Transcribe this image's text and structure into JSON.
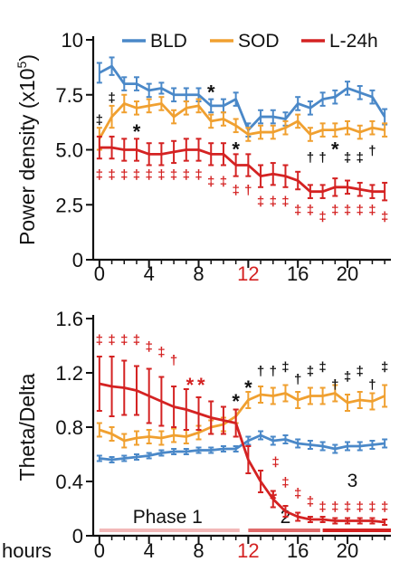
{
  "chart_data": [
    {
      "type": "line",
      "ylabel": "Power density (x10",
      "ylabel_sup": "5",
      "ylabel_close": ")",
      "ylim": [
        0,
        10
      ],
      "yticks": [
        "0",
        "2.5",
        "5.0",
        "7.5",
        "10"
      ],
      "xlim": [
        -0.5,
        23.5
      ],
      "xticks": [
        {
          "x": 0,
          "label": "0",
          "color": "#111111"
        },
        {
          "x": 4,
          "label": "4",
          "color": "#111111"
        },
        {
          "x": 8,
          "label": "8",
          "color": "#111111"
        },
        {
          "x": 12,
          "label": "12",
          "color": "#d42222"
        },
        {
          "x": 16,
          "label": "16",
          "color": "#111111"
        },
        {
          "x": 20,
          "label": "20",
          "color": "#111111"
        }
      ],
      "legend": {
        "placement": "top"
      },
      "x": [
        0,
        1,
        2,
        3,
        4,
        5,
        6,
        7,
        8,
        9,
        10,
        11,
        12,
        13,
        14,
        15,
        16,
        17,
        18,
        19,
        20,
        21,
        22,
        23
      ],
      "series": [
        {
          "name": "BLD",
          "color": "#4a88c8",
          "values": [
            8.5,
            8.8,
            8.0,
            8.0,
            7.7,
            7.8,
            7.5,
            7.5,
            7.5,
            7.0,
            7.0,
            7.3,
            5.9,
            6.5,
            6.5,
            6.4,
            7.1,
            6.9,
            7.3,
            7.4,
            7.8,
            7.6,
            7.4,
            6.5
          ],
          "err": [
            0.45,
            0.4,
            0.3,
            0.3,
            0.3,
            0.25,
            0.3,
            0.3,
            0.3,
            0.3,
            0.3,
            0.3,
            0.3,
            0.3,
            0.3,
            0.3,
            0.3,
            0.3,
            0.3,
            0.3,
            0.3,
            0.3,
            0.3,
            0.35
          ]
        },
        {
          "name": "SOD",
          "color": "#f0a030",
          "values": [
            5.5,
            6.5,
            7.1,
            6.9,
            7.0,
            7.1,
            6.5,
            6.9,
            7.0,
            6.3,
            6.4,
            6.1,
            5.7,
            5.8,
            5.8,
            6.0,
            6.3,
            5.7,
            5.9,
            5.9,
            6.0,
            5.8,
            6.0,
            5.9
          ],
          "err": [
            0.5,
            0.5,
            0.4,
            0.3,
            0.3,
            0.3,
            0.3,
            0.3,
            0.3,
            0.3,
            0.3,
            0.3,
            0.3,
            0.3,
            0.3,
            0.3,
            0.3,
            0.3,
            0.3,
            0.3,
            0.3,
            0.3,
            0.3,
            0.3
          ]
        },
        {
          "name": "L-24h",
          "color": "#d42222",
          "values": [
            5.1,
            5.1,
            5.0,
            5.0,
            4.8,
            4.8,
            4.9,
            5.0,
            5.0,
            4.8,
            4.8,
            4.3,
            4.3,
            3.8,
            3.9,
            3.8,
            3.6,
            3.1,
            3.1,
            3.3,
            3.3,
            3.2,
            3.1,
            3.1
          ],
          "err": [
            0.5,
            0.5,
            0.5,
            0.5,
            0.5,
            0.5,
            0.5,
            0.5,
            0.5,
            0.5,
            0.5,
            0.5,
            0.5,
            0.5,
            0.5,
            0.5,
            0.4,
            0.3,
            0.3,
            0.4,
            0.3,
            0.3,
            0.3,
            0.4
          ]
        }
      ],
      "annotations": [
        {
          "text": "‡",
          "x": 0,
          "y": 6.4,
          "color": "#111111"
        },
        {
          "text": "‡",
          "x": 1,
          "y": 7.4,
          "color": "#111111"
        },
        {
          "text": "*",
          "x": 3,
          "y": 6.0,
          "color": "#111111"
        },
        {
          "text": "*",
          "x": 9,
          "y": 7.8,
          "color": "#111111"
        },
        {
          "text": "*",
          "x": 11,
          "y": 5.2,
          "color": "#111111"
        },
        {
          "text": "†",
          "x": 17,
          "y": 4.7,
          "color": "#111111"
        },
        {
          "text": "†",
          "x": 18,
          "y": 4.7,
          "color": "#111111"
        },
        {
          "text": "*",
          "x": 19,
          "y": 5.2,
          "color": "#111111"
        },
        {
          "text": "‡",
          "x": 20,
          "y": 4.7,
          "color": "#111111"
        },
        {
          "text": "‡",
          "x": 21,
          "y": 4.7,
          "color": "#111111"
        },
        {
          "text": "†",
          "x": 22,
          "y": 5.0,
          "color": "#111111"
        },
        {
          "text": "‡",
          "x": 0,
          "y": 3.9,
          "color": "#d42222"
        },
        {
          "text": "‡",
          "x": 1,
          "y": 3.9,
          "color": "#d42222"
        },
        {
          "text": "‡",
          "x": 2,
          "y": 3.9,
          "color": "#d42222"
        },
        {
          "text": "‡",
          "x": 3,
          "y": 3.9,
          "color": "#d42222"
        },
        {
          "text": "‡",
          "x": 4,
          "y": 3.9,
          "color": "#d42222"
        },
        {
          "text": "‡",
          "x": 5,
          "y": 3.9,
          "color": "#d42222"
        },
        {
          "text": "‡",
          "x": 6,
          "y": 3.9,
          "color": "#d42222"
        },
        {
          "text": "‡",
          "x": 7,
          "y": 3.9,
          "color": "#d42222"
        },
        {
          "text": "‡",
          "x": 8,
          "y": 3.9,
          "color": "#d42222"
        },
        {
          "text": "‡",
          "x": 9,
          "y": 3.6,
          "color": "#d42222"
        },
        {
          "text": "‡",
          "x": 10,
          "y": 3.6,
          "color": "#d42222"
        },
        {
          "text": "‡",
          "x": 11,
          "y": 3.2,
          "color": "#d42222"
        },
        {
          "text": "†",
          "x": 12,
          "y": 3.2,
          "color": "#d42222"
        },
        {
          "text": "‡",
          "x": 13,
          "y": 2.7,
          "color": "#d42222"
        },
        {
          "text": "‡",
          "x": 14,
          "y": 2.7,
          "color": "#d42222"
        },
        {
          "text": "‡",
          "x": 15,
          "y": 2.7,
          "color": "#d42222"
        },
        {
          "text": "‡",
          "x": 16,
          "y": 2.3,
          "color": "#d42222"
        },
        {
          "text": "‡",
          "x": 17,
          "y": 2.3,
          "color": "#d42222"
        },
        {
          "text": "‡",
          "x": 18,
          "y": 2.0,
          "color": "#d42222"
        },
        {
          "text": "‡",
          "x": 19,
          "y": 2.3,
          "color": "#d42222"
        },
        {
          "text": "‡",
          "x": 20,
          "y": 2.3,
          "color": "#d42222"
        },
        {
          "text": "‡",
          "x": 21,
          "y": 2.3,
          "color": "#d42222"
        },
        {
          "text": "‡",
          "x": 22,
          "y": 2.3,
          "color": "#d42222"
        },
        {
          "text": "‡",
          "x": 23,
          "y": 2.0,
          "color": "#d42222"
        }
      ]
    },
    {
      "type": "line",
      "ylabel": "Theta/Delta",
      "ylim": [
        0,
        1.6
      ],
      "yticks": [
        "0",
        "0.4",
        "0.8",
        "1.2",
        "1.6"
      ],
      "xlim": [
        -0.5,
        23.5
      ],
      "xlabel": "hours",
      "xticks": [
        {
          "x": 0,
          "label": "0",
          "color": "#111111"
        },
        {
          "x": 4,
          "label": "4",
          "color": "#111111"
        },
        {
          "x": 8,
          "label": "8",
          "color": "#111111"
        },
        {
          "x": 12,
          "label": "12",
          "color": "#d42222"
        },
        {
          "x": 16,
          "label": "16",
          "color": "#111111"
        },
        {
          "x": 20,
          "label": "20",
          "color": "#111111"
        }
      ],
      "x": [
        0,
        1,
        2,
        3,
        4,
        5,
        6,
        7,
        8,
        9,
        10,
        11,
        12,
        13,
        14,
        15,
        16,
        17,
        18,
        19,
        20,
        21,
        22,
        23
      ],
      "series": [
        {
          "name": "BLD",
          "color": "#4a88c8",
          "values": [
            0.57,
            0.56,
            0.57,
            0.58,
            0.59,
            0.61,
            0.62,
            0.62,
            0.63,
            0.63,
            0.64,
            0.64,
            0.7,
            0.74,
            0.7,
            0.71,
            0.68,
            0.67,
            0.66,
            0.64,
            0.66,
            0.66,
            0.67,
            0.68
          ],
          "err": [
            0.02,
            0.02,
            0.02,
            0.02,
            0.02,
            0.02,
            0.02,
            0.02,
            0.02,
            0.02,
            0.02,
            0.02,
            0.03,
            0.03,
            0.03,
            0.03,
            0.03,
            0.03,
            0.03,
            0.03,
            0.03,
            0.03,
            0.03,
            0.03
          ]
        },
        {
          "name": "SOD",
          "color": "#f0a030",
          "values": [
            0.78,
            0.75,
            0.7,
            0.72,
            0.73,
            0.72,
            0.74,
            0.73,
            0.76,
            0.8,
            0.82,
            0.88,
            1.0,
            1.04,
            1.03,
            1.05,
            1.0,
            1.03,
            1.03,
            1.05,
            0.98,
            1.0,
            0.99,
            1.03
          ],
          "err": [
            0.05,
            0.05,
            0.05,
            0.05,
            0.05,
            0.05,
            0.05,
            0.05,
            0.05,
            0.05,
            0.05,
            0.05,
            0.06,
            0.06,
            0.06,
            0.06,
            0.06,
            0.06,
            0.06,
            0.06,
            0.06,
            0.06,
            0.06,
            0.08
          ]
        },
        {
          "name": "L-24h",
          "color": "#d42222",
          "values": [
            1.12,
            1.1,
            1.09,
            1.07,
            1.03,
            0.99,
            0.95,
            0.93,
            0.9,
            0.87,
            0.85,
            0.83,
            0.56,
            0.4,
            0.27,
            0.18,
            0.14,
            0.12,
            0.12,
            0.11,
            0.11,
            0.11,
            0.11,
            0.1
          ],
          "err": [
            0.2,
            0.22,
            0.2,
            0.18,
            0.2,
            0.18,
            0.15,
            0.15,
            0.12,
            0.12,
            0.1,
            0.1,
            0.1,
            0.08,
            0.06,
            0.04,
            0.03,
            0.02,
            0.02,
            0.02,
            0.02,
            0.02,
            0.02,
            0.02
          ]
        }
      ],
      "annotations": [
        {
          "text": "‡",
          "x": 0,
          "y": 1.45,
          "color": "#d42222"
        },
        {
          "text": "‡",
          "x": 1,
          "y": 1.45,
          "color": "#d42222"
        },
        {
          "text": "‡",
          "x": 2,
          "y": 1.45,
          "color": "#d42222"
        },
        {
          "text": "‡",
          "x": 3,
          "y": 1.45,
          "color": "#d42222"
        },
        {
          "text": "‡",
          "x": 4,
          "y": 1.4,
          "color": "#d42222"
        },
        {
          "text": "‡",
          "x": 5,
          "y": 1.36,
          "color": "#d42222"
        },
        {
          "text": "†",
          "x": 6,
          "y": 1.3,
          "color": "#d42222"
        },
        {
          "text": "*",
          "x": 7.3,
          "y": 1.14,
          "color": "#d42222"
        },
        {
          "text": "*",
          "x": 8.2,
          "y": 1.14,
          "color": "#d42222"
        },
        {
          "text": "*",
          "x": 11,
          "y": 1.02,
          "color": "#111111"
        },
        {
          "text": "*",
          "x": 12,
          "y": 1.12,
          "color": "#111111"
        },
        {
          "text": "†",
          "x": 13,
          "y": 1.22,
          "color": "#111111"
        },
        {
          "text": "†",
          "x": 14,
          "y": 1.22,
          "color": "#111111"
        },
        {
          "text": "‡",
          "x": 15,
          "y": 1.25,
          "color": "#111111"
        },
        {
          "text": "†",
          "x": 16,
          "y": 1.16,
          "color": "#111111"
        },
        {
          "text": "‡",
          "x": 17,
          "y": 1.22,
          "color": "#111111"
        },
        {
          "text": "‡",
          "x": 18,
          "y": 1.25,
          "color": "#111111"
        },
        {
          "text": "†",
          "x": 19,
          "y": 1.12,
          "color": "#111111"
        },
        {
          "text": "‡",
          "x": 20,
          "y": 1.18,
          "color": "#111111"
        },
        {
          "text": "‡",
          "x": 21,
          "y": 1.22,
          "color": "#111111"
        },
        {
          "text": "†",
          "x": 22,
          "y": 1.12,
          "color": "#111111"
        },
        {
          "text": "‡",
          "x": 23,
          "y": 1.25,
          "color": "#111111"
        },
        {
          "text": "*",
          "x": 14,
          "y": 0.3,
          "color": "#d42222"
        },
        {
          "text": "‡",
          "x": 14.2,
          "y": 0.55,
          "color": "#d42222"
        },
        {
          "text": "‡",
          "x": 15,
          "y": 0.4,
          "color": "#d42222"
        },
        {
          "text": "‡",
          "x": 16,
          "y": 0.32,
          "color": "#d42222"
        },
        {
          "text": "‡",
          "x": 17,
          "y": 0.26,
          "color": "#d42222"
        },
        {
          "text": "‡",
          "x": 18,
          "y": 0.22,
          "color": "#d42222"
        },
        {
          "text": "‡",
          "x": 19,
          "y": 0.22,
          "color": "#d42222"
        },
        {
          "text": "‡",
          "x": 20,
          "y": 0.22,
          "color": "#d42222"
        },
        {
          "text": "‡",
          "x": 21,
          "y": 0.22,
          "color": "#d42222"
        },
        {
          "text": "‡",
          "x": 22,
          "y": 0.22,
          "color": "#d42222"
        },
        {
          "text": "‡",
          "x": 23,
          "y": 0.22,
          "color": "#d42222"
        }
      ],
      "phases": [
        {
          "label": "Phase 1",
          "start": 0,
          "end": 11.3,
          "color": "#f2b8b8"
        },
        {
          "label": "2",
          "start": 12,
          "end": 17.8,
          "color": "#e06a6a"
        },
        {
          "label": "3",
          "start": 18,
          "end": 23.5,
          "color": "#d42222"
        }
      ]
    }
  ]
}
